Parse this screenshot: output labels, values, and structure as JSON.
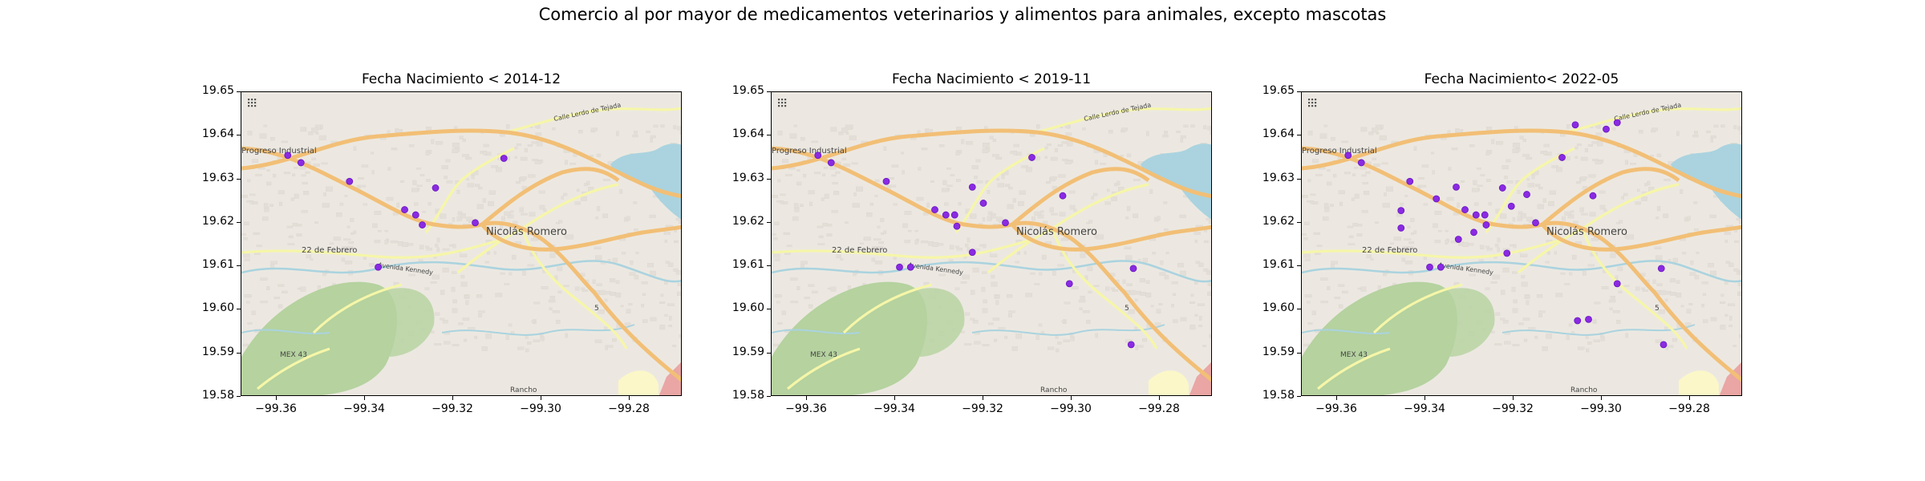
{
  "figure": {
    "suptitle": "Comercio al por mayor de medicamentos veterinarios y alimentos para animales, excepto mascotas"
  },
  "map": {
    "lon_range": [
      -99.368,
      -99.268
    ],
    "lat_range": [
      19.58,
      19.65
    ],
    "x_ticks": [
      -99.36,
      -99.34,
      -99.32,
      -99.3,
      -99.28
    ],
    "x_tick_labels": [
      "−99.36",
      "−99.34",
      "−99.32",
      "−99.30",
      "−99.28"
    ],
    "y_ticks": [
      19.65,
      19.64,
      19.63,
      19.62,
      19.61,
      19.6,
      19.59,
      19.58
    ],
    "y_tick_labels": [
      "19.65",
      "19.64",
      "19.63",
      "19.62",
      "19.61",
      "19.60",
      "19.59",
      "19.58"
    ],
    "place_labels": {
      "progreso": "Progreso Industrial",
      "nicolas": "Nicolás Romero",
      "febrero": "22 de Febrero",
      "lerdo": "Calle Lerdo de Tejada",
      "kennedy": "Avenida Kennedy",
      "mex43": "MEX 43",
      "rancho": "Rancho",
      "route5": "5"
    },
    "colors": {
      "background": "#ece8e1",
      "water": "#aad3df",
      "park": "#b5d29f",
      "major_road": "#f2bf76",
      "secondary_road": "#f6f6a8",
      "dot": "#8a2be2"
    }
  },
  "panels": [
    {
      "title": "Fecha Nacimiento < 2014-12",
      "points": [
        {
          "lon": -99.3575,
          "lat": 19.6355
        },
        {
          "lon": -99.3545,
          "lat": 19.6338
        },
        {
          "lon": -99.3435,
          "lat": 19.6295
        },
        {
          "lon": -99.331,
          "lat": 19.623
        },
        {
          "lon": -99.3285,
          "lat": 19.6218
        },
        {
          "lon": -99.327,
          "lat": 19.6195
        },
        {
          "lon": -99.324,
          "lat": 19.628
        },
        {
          "lon": -99.315,
          "lat": 19.62
        },
        {
          "lon": -99.3085,
          "lat": 19.6348
        },
        {
          "lon": -99.337,
          "lat": 19.6098
        }
      ]
    },
    {
      "title": "Fecha Nacimiento < 2019-11",
      "points": [
        {
          "lon": -99.3575,
          "lat": 19.6355
        },
        {
          "lon": -99.3545,
          "lat": 19.6338
        },
        {
          "lon": -99.342,
          "lat": 19.6295
        },
        {
          "lon": -99.331,
          "lat": 19.623
        },
        {
          "lon": -99.3285,
          "lat": 19.6218
        },
        {
          "lon": -99.3265,
          "lat": 19.6218
        },
        {
          "lon": -99.326,
          "lat": 19.6192
        },
        {
          "lon": -99.3225,
          "lat": 19.6282
        },
        {
          "lon": -99.32,
          "lat": 19.6245
        },
        {
          "lon": -99.315,
          "lat": 19.62
        },
        {
          "lon": -99.309,
          "lat": 19.635
        },
        {
          "lon": -99.302,
          "lat": 19.6262
        },
        {
          "lon": -99.339,
          "lat": 19.6098
        },
        {
          "lon": -99.3365,
          "lat": 19.6098
        },
        {
          "lon": -99.3225,
          "lat": 19.6132
        },
        {
          "lon": -99.3005,
          "lat": 19.606
        },
        {
          "lon": -99.286,
          "lat": 19.6095
        },
        {
          "lon": -99.2865,
          "lat": 19.592
        }
      ]
    },
    {
      "title": "Fecha Nacimiento< 2022-05",
      "points": [
        {
          "lon": -99.3575,
          "lat": 19.6355
        },
        {
          "lon": -99.3545,
          "lat": 19.6338
        },
        {
          "lon": -99.3435,
          "lat": 19.6295
        },
        {
          "lon": -99.3455,
          "lat": 19.6228
        },
        {
          "lon": -99.3455,
          "lat": 19.6188
        },
        {
          "lon": -99.3375,
          "lat": 19.6255
        },
        {
          "lon": -99.333,
          "lat": 19.6282
        },
        {
          "lon": -99.331,
          "lat": 19.623
        },
        {
          "lon": -99.3285,
          "lat": 19.6218
        },
        {
          "lon": -99.3265,
          "lat": 19.6218
        },
        {
          "lon": -99.3262,
          "lat": 19.6195
        },
        {
          "lon": -99.329,
          "lat": 19.6178
        },
        {
          "lon": -99.3325,
          "lat": 19.6162
        },
        {
          "lon": -99.3225,
          "lat": 19.628
        },
        {
          "lon": -99.3205,
          "lat": 19.6238
        },
        {
          "lon": -99.317,
          "lat": 19.6265
        },
        {
          "lon": -99.315,
          "lat": 19.62
        },
        {
          "lon": -99.309,
          "lat": 19.635
        },
        {
          "lon": -99.302,
          "lat": 19.6262
        },
        {
          "lon": -99.306,
          "lat": 19.6425
        },
        {
          "lon": -99.299,
          "lat": 19.6415
        },
        {
          "lon": -99.2965,
          "lat": 19.643
        },
        {
          "lon": -99.339,
          "lat": 19.6098
        },
        {
          "lon": -99.3365,
          "lat": 19.6098
        },
        {
          "lon": -99.3215,
          "lat": 19.613
        },
        {
          "lon": -99.2965,
          "lat": 19.606
        },
        {
          "lon": -99.2865,
          "lat": 19.6095
        },
        {
          "lon": -99.286,
          "lat": 19.592
        },
        {
          "lon": -99.3055,
          "lat": 19.5975
        },
        {
          "lon": -99.303,
          "lat": 19.5978
        }
      ]
    }
  ]
}
